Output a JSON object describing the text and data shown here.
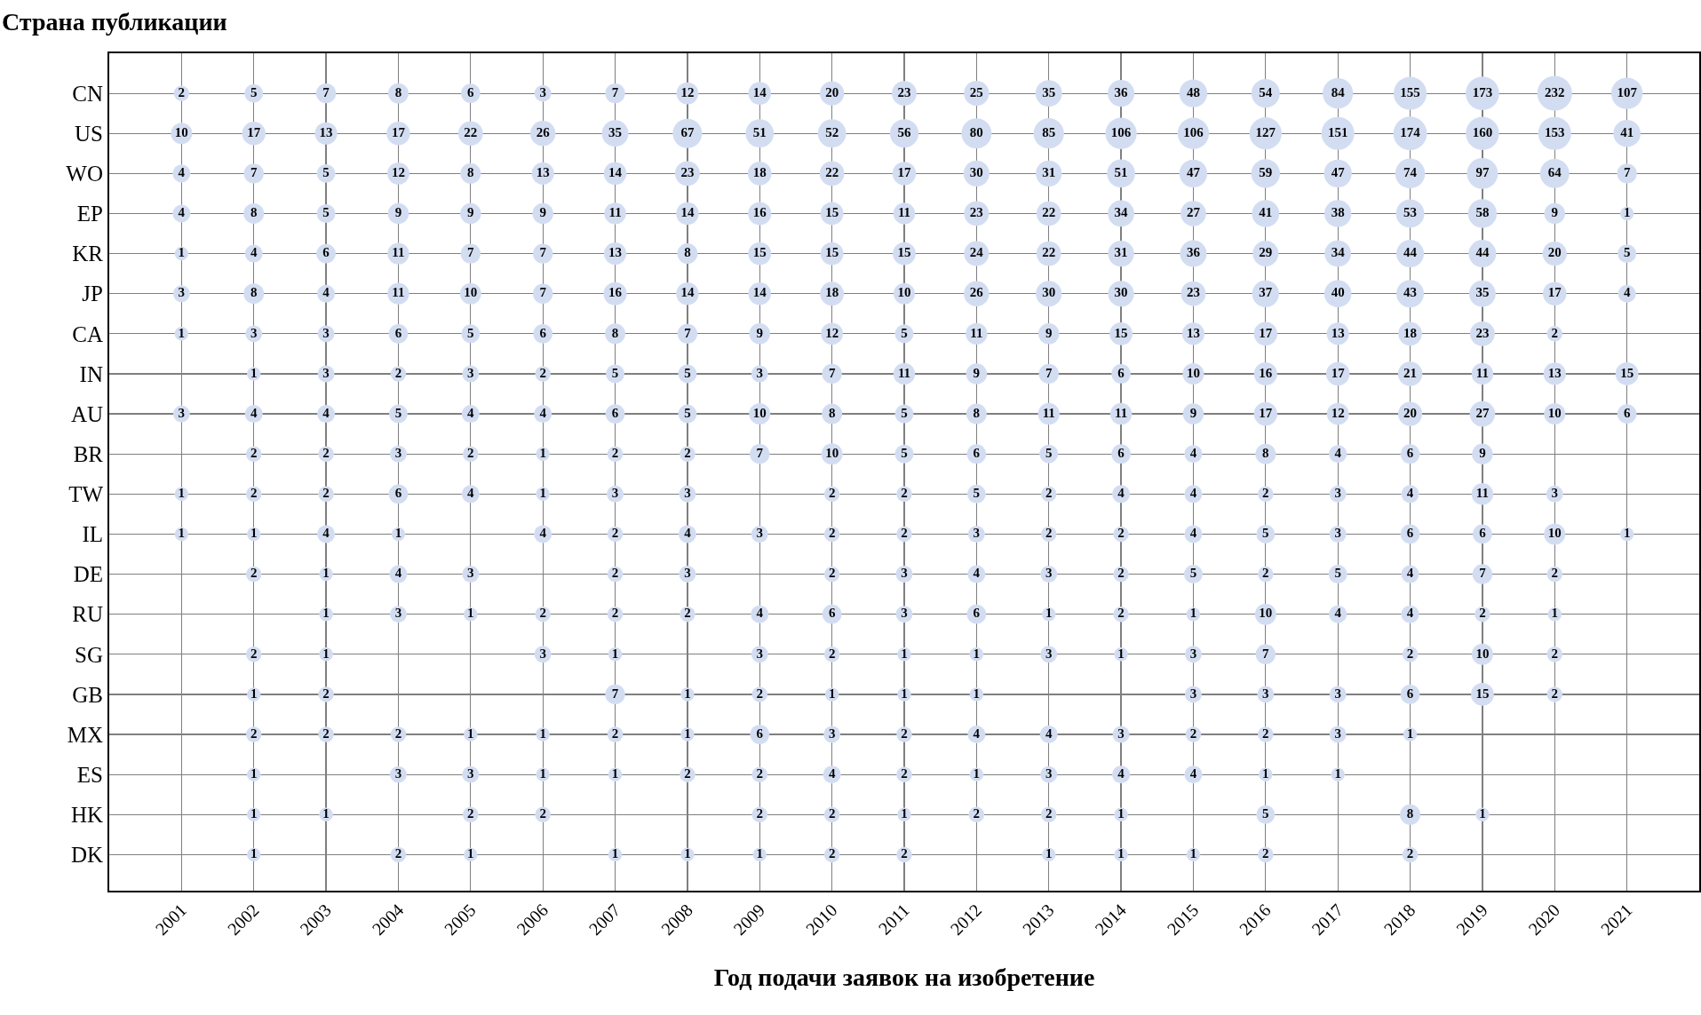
{
  "chart_data": {
    "type": "heatmap",
    "xlabel": "Год подачи заявок на изобретение",
    "ylabel": "Страна публикации",
    "categories": [
      "2001",
      "2002",
      "2003",
      "2004",
      "2005",
      "2006",
      "2007",
      "2008",
      "2009",
      "2010",
      "2011",
      "2012",
      "2013",
      "2014",
      "2015",
      "2016",
      "2017",
      "2018",
      "2019",
      "2020",
      "2021"
    ],
    "y_categories": [
      "CN",
      "US",
      "WO",
      "EP",
      "KR",
      "JP",
      "CA",
      "IN",
      "AU",
      "BR",
      "TW",
      "IL",
      "DE",
      "RU",
      "SG",
      "GB",
      "MX",
      "ES",
      "HK",
      "DK"
    ],
    "cells": [
      [
        2,
        5,
        7,
        8,
        6,
        3,
        7,
        12,
        14,
        20,
        23,
        25,
        35,
        36,
        48,
        54,
        84,
        155,
        173,
        232,
        107
      ],
      [
        10,
        17,
        13,
        17,
        22,
        26,
        35,
        67,
        51,
        52,
        56,
        80,
        85,
        106,
        106,
        127,
        151,
        174,
        160,
        153,
        41
      ],
      [
        4,
        7,
        5,
        12,
        8,
        13,
        14,
        23,
        18,
        22,
        17,
        30,
        31,
        51,
        47,
        59,
        47,
        74,
        97,
        64,
        7
      ],
      [
        4,
        8,
        5,
        9,
        9,
        9,
        11,
        14,
        16,
        15,
        11,
        23,
        22,
        34,
        27,
        41,
        38,
        53,
        58,
        9,
        1
      ],
      [
        1,
        4,
        6,
        11,
        7,
        7,
        13,
        8,
        15,
        15,
        15,
        24,
        22,
        31,
        36,
        29,
        34,
        44,
        44,
        20,
        5
      ],
      [
        3,
        8,
        4,
        11,
        10,
        7,
        16,
        14,
        14,
        18,
        10,
        26,
        30,
        30,
        23,
        37,
        40,
        43,
        35,
        17,
        4
      ],
      [
        1,
        3,
        3,
        6,
        5,
        6,
        8,
        7,
        9,
        12,
        5,
        11,
        9,
        15,
        13,
        17,
        13,
        18,
        23,
        2,
        null
      ],
      [
        null,
        1,
        3,
        2,
        3,
        2,
        5,
        5,
        3,
        7,
        11,
        9,
        7,
        6,
        10,
        16,
        17,
        21,
        11,
        13,
        15
      ],
      [
        3,
        4,
        4,
        5,
        4,
        4,
        6,
        5,
        10,
        8,
        5,
        8,
        11,
        11,
        9,
        17,
        12,
        20,
        27,
        10,
        6
      ],
      [
        null,
        2,
        2,
        3,
        2,
        1,
        2,
        2,
        7,
        10,
        5,
        6,
        5,
        6,
        4,
        8,
        4,
        6,
        9,
        null,
        null
      ],
      [
        1,
        2,
        2,
        6,
        4,
        1,
        3,
        3,
        null,
        2,
        2,
        5,
        2,
        4,
        4,
        2,
        3,
        4,
        11,
        3,
        null
      ],
      [
        1,
        1,
        4,
        1,
        null,
        4,
        2,
        4,
        3,
        2,
        2,
        3,
        2,
        2,
        4,
        5,
        3,
        6,
        6,
        10,
        1
      ],
      [
        null,
        2,
        1,
        4,
        3,
        null,
        2,
        3,
        null,
        2,
        3,
        4,
        3,
        2,
        5,
        2,
        5,
        4,
        7,
        2,
        null
      ],
      [
        null,
        null,
        1,
        3,
        1,
        2,
        2,
        2,
        4,
        6,
        3,
        6,
        1,
        2,
        1,
        10,
        4,
        4,
        2,
        1,
        null
      ],
      [
        null,
        2,
        1,
        null,
        null,
        3,
        1,
        null,
        3,
        2,
        1,
        1,
        3,
        1,
        3,
        7,
        null,
        2,
        10,
        2,
        null
      ],
      [
        null,
        1,
        2,
        null,
        null,
        null,
        7,
        1,
        2,
        1,
        1,
        1,
        null,
        null,
        3,
        3,
        3,
        6,
        15,
        2,
        null
      ],
      [
        null,
        2,
        2,
        2,
        1,
        1,
        2,
        1,
        6,
        3,
        2,
        4,
        4,
        3,
        2,
        2,
        3,
        1,
        null,
        null,
        null
      ],
      [
        null,
        1,
        null,
        3,
        3,
        1,
        1,
        2,
        2,
        4,
        2,
        1,
        3,
        4,
        4,
        1,
        1,
        null,
        null,
        null,
        null
      ],
      [
        null,
        1,
        1,
        null,
        2,
        2,
        null,
        null,
        2,
        2,
        1,
        2,
        2,
        1,
        null,
        5,
        null,
        8,
        1,
        null,
        null
      ],
      [
        null,
        1,
        null,
        2,
        1,
        null,
        1,
        1,
        1,
        2,
        2,
        null,
        1,
        1,
        1,
        2,
        null,
        2,
        null,
        null,
        null
      ]
    ],
    "color": "#d3ddf2",
    "marker": "circle",
    "data_labels": true,
    "grid": true
  }
}
